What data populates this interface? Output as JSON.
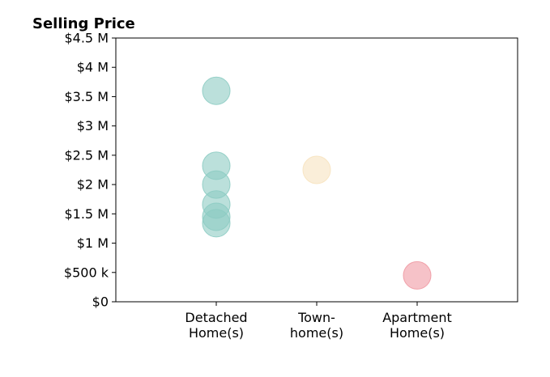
{
  "chart_data": {
    "type": "scatter",
    "title": "Selling Price",
    "xlabel": "",
    "ylabel": "",
    "categories": [
      [
        "Detached",
        "Home(s)"
      ],
      [
        "Town-",
        "home(s)"
      ],
      [
        "Apartment",
        "Home(s)"
      ]
    ],
    "x_range": [
      0,
      4
    ],
    "category_positions": [
      1,
      2,
      3
    ],
    "ylim": [
      0,
      4500000
    ],
    "yticks": [
      0,
      500000,
      1000000,
      1500000,
      2000000,
      2500000,
      3000000,
      3500000,
      4000000,
      4500000
    ],
    "ytick_labels": [
      "$0",
      "$500 k",
      "$1 M",
      "$1.5 M",
      "$2 M",
      "$2.5 M",
      "$3 M",
      "$3.5 M",
      "$4 M",
      "$4.5 M"
    ],
    "grid": false,
    "legend": "none",
    "series": [
      {
        "category": "Detached Home(s)",
        "color": "#8dccc3",
        "values": [
          3600000,
          2320000,
          2000000,
          1660000,
          1450000,
          1340000
        ]
      },
      {
        "category": "Townhome(s)",
        "color": "#f7e3bf",
        "values": [
          2250000
        ]
      },
      {
        "category": "Apartment Home(s)",
        "color": "#f09aa3",
        "values": [
          450000
        ]
      }
    ],
    "marker_opacity": 0.6
  }
}
